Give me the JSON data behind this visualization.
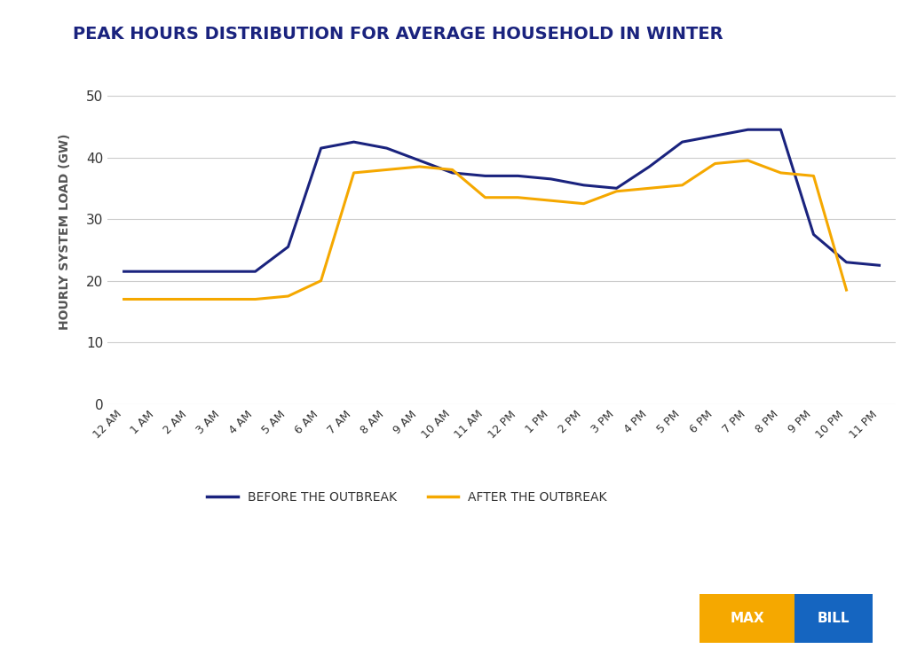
{
  "title": "PEAK HOURS DISTRIBUTION FOR AVERAGE HOUSEHOLD IN WINTER",
  "ylabel": "HOURLY SYSTEM LOAD (GW)",
  "x_labels": [
    "12 AM",
    "1 AM",
    "2 AM",
    "3 AM",
    "4 AM",
    "5 AM",
    "6 AM",
    "7 AM",
    "8 AM",
    "9 AM",
    "10 AM",
    "11 AM",
    "12 PM",
    "1 PM",
    "2 PM",
    "3 PM",
    "4 PM",
    "5 PM",
    "6 PM",
    "7 PM",
    "8 PM",
    "9 PM",
    "10 PM",
    "11 PM"
  ],
  "before": [
    21.5,
    21.5,
    21.5,
    21.5,
    21.5,
    25.5,
    41.5,
    42.5,
    41.5,
    39.5,
    37.5,
    37.0,
    37.0,
    36.5,
    35.5,
    35.0,
    38.5,
    42.5,
    43.5,
    44.5,
    44.5,
    27.5,
    23.0,
    22.5
  ],
  "after": [
    17.0,
    17.0,
    17.0,
    17.0,
    17.0,
    17.5,
    20.0,
    37.5,
    38.0,
    38.5,
    38.0,
    33.5,
    33.5,
    33.0,
    32.5,
    34.5,
    35.0,
    35.5,
    39.0,
    39.5,
    37.5,
    37.0,
    18.5,
    null
  ],
  "before_color": "#1a237e",
  "after_color": "#f5a800",
  "ylim": [
    0,
    56
  ],
  "yticks": [
    0,
    10,
    20,
    30,
    40,
    50
  ],
  "title_color": "#1a237e",
  "ylabel_color": "#555555",
  "grid_color": "#cccccc",
  "background_color": "#ffffff",
  "legend_before": "BEFORE THE OUTBREAK",
  "legend_after": "AFTER THE OUTBREAK",
  "logo_gold_color": "#f5a800",
  "logo_blue_color": "#1565c0",
  "line_width": 2.2
}
